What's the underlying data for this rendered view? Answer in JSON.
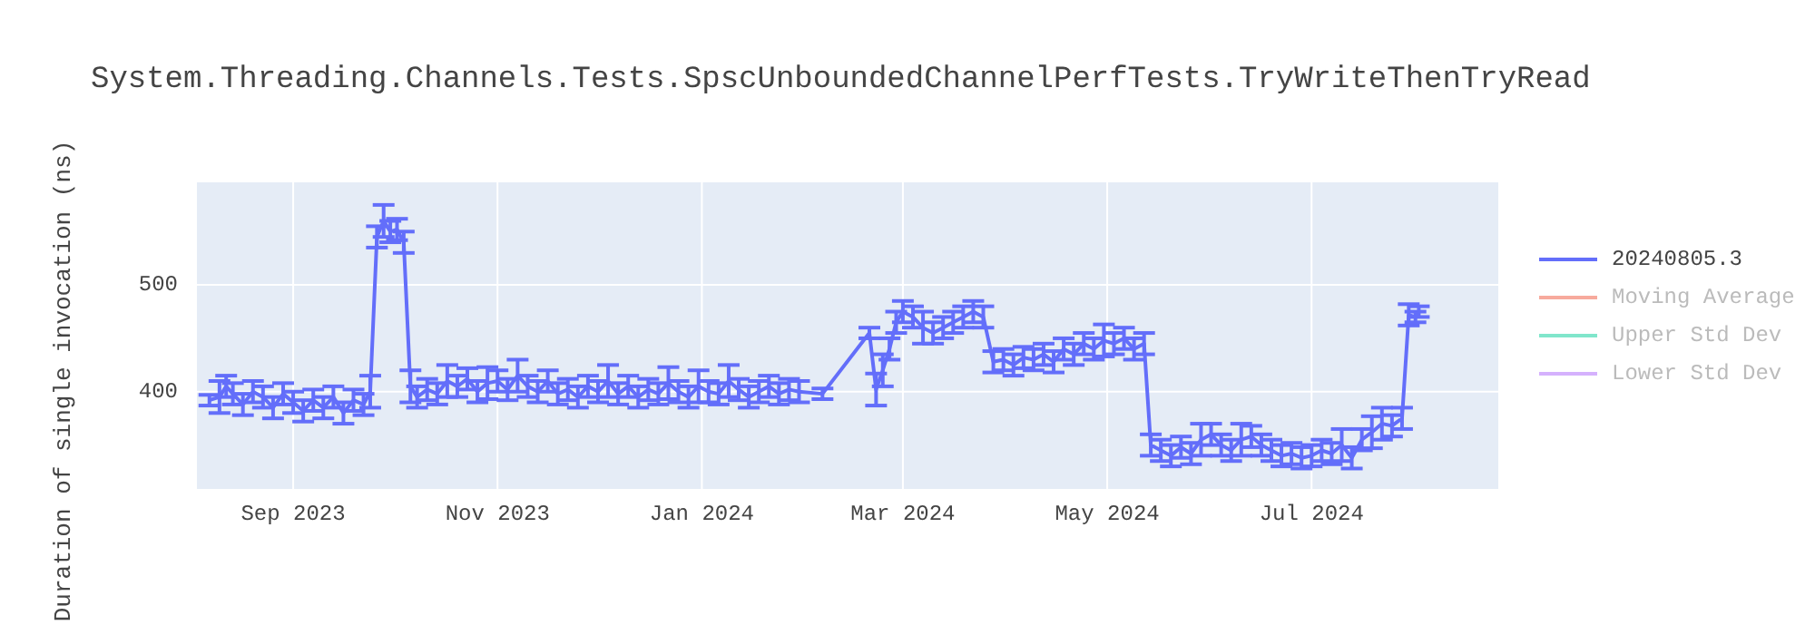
{
  "chart_data": {
    "type": "line",
    "title": "System.Threading.Channels.Tests.SpscUnboundedChannelPerfTests.TryWriteThenTryRead",
    "ylabel": "Duration of single invocation (ns)",
    "xlim": [
      "2023-08-03",
      "2024-08-26"
    ],
    "xticks": [
      {
        "value": "2023-09-01",
        "label": "Sep 2023"
      },
      {
        "value": "2023-11-01",
        "label": "Nov 2023"
      },
      {
        "value": "2024-01-01",
        "label": "Jan 2024"
      },
      {
        "value": "2024-03-01",
        "label": "Mar 2024"
      },
      {
        "value": "2024-05-01",
        "label": "May 2024"
      },
      {
        "value": "2024-07-01",
        "label": "Jul 2024"
      }
    ],
    "ylim": [
      308,
      597
    ],
    "yticks": [
      400,
      500
    ],
    "grid": true,
    "legend": "right",
    "series": [
      {
        "name": "20240805.3",
        "color": "#636efa",
        "x": [
          "2023-08-07",
          "2023-08-10",
          "2023-08-12",
          "2023-08-14",
          "2023-08-17",
          "2023-08-20",
          "2023-08-23",
          "2023-08-26",
          "2023-08-29",
          "2023-09-01",
          "2023-09-04",
          "2023-09-07",
          "2023-09-10",
          "2023-09-13",
          "2023-09-16",
          "2023-09-19",
          "2023-09-22",
          "2023-09-24",
          "2023-09-26",
          "2023-09-28",
          "2023-09-30",
          "2023-10-02",
          "2023-10-04",
          "2023-10-06",
          "2023-10-08",
          "2023-10-11",
          "2023-10-14",
          "2023-10-17",
          "2023-10-20",
          "2023-10-23",
          "2023-10-26",
          "2023-10-29",
          "2023-11-01",
          "2023-11-04",
          "2023-11-07",
          "2023-11-10",
          "2023-11-13",
          "2023-11-16",
          "2023-11-19",
          "2023-11-22",
          "2023-11-25",
          "2023-11-28",
          "2023-12-01",
          "2023-12-04",
          "2023-12-07",
          "2023-12-10",
          "2023-12-13",
          "2023-12-16",
          "2023-12-19",
          "2023-12-22",
          "2023-12-25",
          "2023-12-28",
          "2023-12-31",
          "2024-01-03",
          "2024-01-06",
          "2024-01-09",
          "2024-01-12",
          "2024-01-15",
          "2024-01-18",
          "2024-01-21",
          "2024-01-24",
          "2024-01-27",
          "2024-01-30",
          "2024-02-06",
          "2024-02-20",
          "2024-02-22",
          "2024-02-24",
          "2024-02-26",
          "2024-02-28",
          "2024-03-01",
          "2024-03-04",
          "2024-03-07",
          "2024-03-10",
          "2024-03-13",
          "2024-03-16",
          "2024-03-19",
          "2024-03-22",
          "2024-03-25",
          "2024-03-28",
          "2024-03-31",
          "2024-04-03",
          "2024-04-06",
          "2024-04-09",
          "2024-04-12",
          "2024-04-15",
          "2024-04-18",
          "2024-04-21",
          "2024-04-24",
          "2024-04-27",
          "2024-04-30",
          "2024-05-03",
          "2024-05-06",
          "2024-05-09",
          "2024-05-12",
          "2024-05-14",
          "2024-05-17",
          "2024-05-20",
          "2024-05-23",
          "2024-05-26",
          "2024-05-29",
          "2024-06-01",
          "2024-06-04",
          "2024-06-07",
          "2024-06-10",
          "2024-06-13",
          "2024-06-16",
          "2024-06-19",
          "2024-06-22",
          "2024-06-25",
          "2024-06-28",
          "2024-07-01",
          "2024-07-04",
          "2024-07-07",
          "2024-07-10",
          "2024-07-13",
          "2024-07-16",
          "2024-07-19",
          "2024-07-22",
          "2024-07-25",
          "2024-07-28",
          "2024-07-30",
          "2024-08-01",
          "2024-08-02"
        ],
        "values": [
          392,
          395,
          405,
          398,
          388,
          400,
          395,
          385,
          398,
          390,
          382,
          392,
          385,
          395,
          380,
          392,
          388,
          400,
          545,
          560,
          550,
          552,
          540,
          405,
          395,
          402,
          398,
          410,
          405,
          412,
          400,
          408,
          410,
          402,
          415,
          405,
          400,
          410,
          398,
          402,
          395,
          405,
          400,
          410,
          398,
          405,
          395,
          402,
          398,
          408,
          400,
          395,
          405,
          400,
          398,
          410,
          402,
          395,
          400,
          405,
          398,
          402,
          400,
          398,
          455,
          402,
          420,
          440,
          465,
          475,
          470,
          460,
          455,
          460,
          465,
          470,
          475,
          470,
          428,
          430,
          425,
          432,
          430,
          435,
          428,
          440,
          435,
          445,
          440,
          448,
          445,
          450,
          440,
          445,
          350,
          345,
          340,
          348,
          342,
          355,
          360,
          350,
          345,
          355,
          358,
          350,
          345,
          340,
          342,
          338,
          340,
          345,
          342,
          350,
          338,
          355,
          362,
          370,
          368,
          375,
          472,
          470,
          475
        ],
        "errors": [
          5,
          15,
          10,
          10,
          10,
          10,
          10,
          10,
          10,
          10,
          10,
          10,
          10,
          10,
          10,
          10,
          10,
          15,
          10,
          15,
          10,
          10,
          10,
          15,
          10,
          10,
          10,
          15,
          10,
          10,
          10,
          15,
          10,
          10,
          15,
          10,
          10,
          10,
          10,
          10,
          10,
          10,
          10,
          15,
          10,
          10,
          10,
          10,
          10,
          15,
          10,
          10,
          15,
          10,
          10,
          15,
          10,
          10,
          10,
          10,
          10,
          10,
          10,
          5,
          5,
          15,
          15,
          10,
          10,
          10,
          10,
          15,
          10,
          10,
          10,
          10,
          10,
          10,
          10,
          10,
          10,
          10,
          10,
          10,
          10,
          10,
          10,
          10,
          10,
          15,
          10,
          10,
          10,
          10,
          10,
          10,
          10,
          10,
          10,
          15,
          10,
          10,
          10,
          15,
          10,
          10,
          10,
          10,
          10,
          10,
          10,
          10,
          10,
          15,
          10,
          10,
          15,
          15,
          10,
          10,
          10,
          5,
          5
        ]
      },
      {
        "name": "Moving Average",
        "color": "#f7aa9d"
      },
      {
        "name": "Upper Std Dev",
        "color": "#80e6cb"
      },
      {
        "name": "Lower Std Dev",
        "color": "#d5b1fd"
      }
    ]
  }
}
